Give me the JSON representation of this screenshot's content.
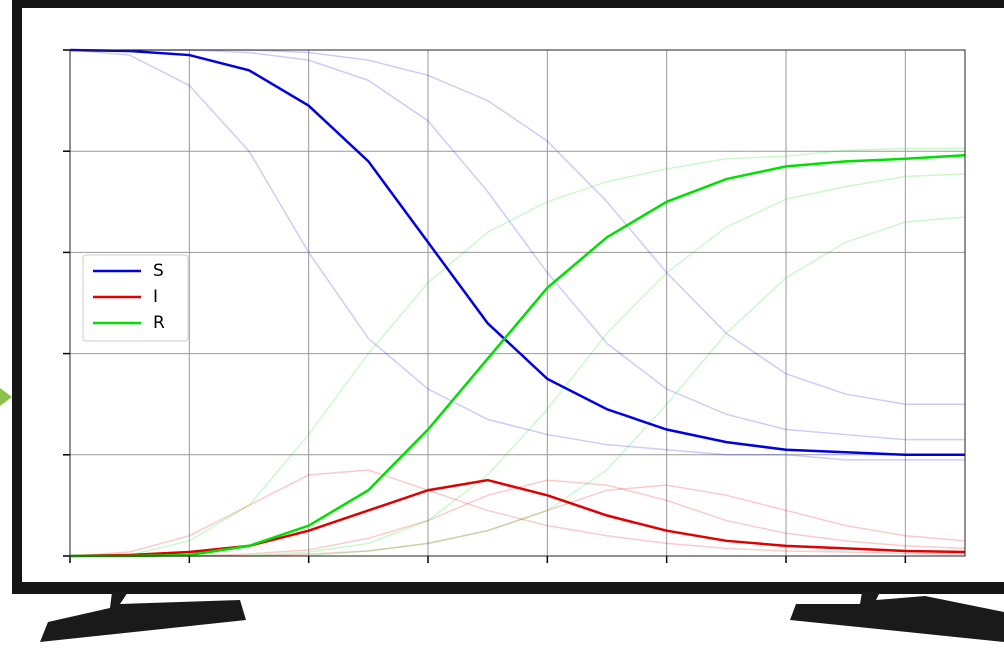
{
  "chart_data": {
    "type": "line",
    "x": [
      0,
      10,
      20,
      30,
      40,
      50,
      60,
      70,
      80,
      90,
      100,
      110,
      120,
      130,
      140,
      150
    ],
    "xlim": [
      0,
      150
    ],
    "xticks": [
      0,
      20,
      40,
      60,
      80,
      100,
      120,
      140
    ],
    "ylim": [
      0,
      1
    ],
    "yticks": [
      0,
      0.2,
      0.4,
      0.6,
      0.8,
      1.0
    ],
    "grid": true,
    "legend": "center left",
    "series": [
      {
        "name": "S",
        "color": "#0000e0",
        "values": [
          1.0,
          0.998,
          0.99,
          0.96,
          0.89,
          0.78,
          0.62,
          0.46,
          0.35,
          0.29,
          0.25,
          0.225,
          0.21,
          0.205,
          0.2,
          0.2
        ]
      },
      {
        "name": "I",
        "color": "#e00000",
        "values": [
          0,
          0.002,
          0.008,
          0.02,
          0.05,
          0.09,
          0.13,
          0.15,
          0.12,
          0.08,
          0.05,
          0.03,
          0.02,
          0.015,
          0.01,
          0.008
        ]
      },
      {
        "name": "R",
        "color": "#00e000",
        "values": [
          0,
          0,
          0.002,
          0.02,
          0.06,
          0.13,
          0.25,
          0.39,
          0.53,
          0.63,
          0.7,
          0.745,
          0.77,
          0.78,
          0.785,
          0.792
        ]
      }
    ],
    "ensemble": [
      {
        "color": "#0000e0",
        "values": [
          1,
          0.99,
          0.93,
          0.8,
          0.6,
          0.43,
          0.33,
          0.27,
          0.24,
          0.22,
          0.21,
          0.2,
          0.2,
          0.19,
          0.19,
          0.19
        ]
      },
      {
        "color": "#0000e0",
        "values": [
          1,
          1,
          1,
          0.995,
          0.98,
          0.94,
          0.86,
          0.72,
          0.56,
          0.42,
          0.33,
          0.28,
          0.25,
          0.24,
          0.23,
          0.23
        ]
      },
      {
        "color": "#0000e0",
        "values": [
          1,
          1,
          1,
          1,
          0.995,
          0.98,
          0.95,
          0.9,
          0.82,
          0.7,
          0.56,
          0.44,
          0.36,
          0.32,
          0.3,
          0.3
        ]
      },
      {
        "color": "#e00000",
        "values": [
          0,
          0.008,
          0.04,
          0.1,
          0.16,
          0.17,
          0.13,
          0.09,
          0.06,
          0.04,
          0.025,
          0.015,
          0.01,
          0.008,
          0.005,
          0.004
        ]
      },
      {
        "color": "#e00000",
        "values": [
          0,
          0,
          0,
          0.004,
          0.012,
          0.035,
          0.07,
          0.12,
          0.15,
          0.14,
          0.11,
          0.07,
          0.045,
          0.03,
          0.02,
          0.015
        ]
      },
      {
        "color": "#e00000",
        "values": [
          0,
          0,
          0,
          0,
          0.004,
          0.01,
          0.025,
          0.05,
          0.09,
          0.13,
          0.14,
          0.12,
          0.09,
          0.06,
          0.04,
          0.03
        ]
      },
      {
        "color": "#00e000",
        "values": [
          0,
          0.002,
          0.03,
          0.1,
          0.24,
          0.4,
          0.54,
          0.64,
          0.7,
          0.74,
          0.765,
          0.785,
          0.79,
          0.802,
          0.805,
          0.806
        ]
      },
      {
        "color": "#00e000",
        "values": [
          0,
          0,
          0,
          0.001,
          0.008,
          0.025,
          0.07,
          0.16,
          0.29,
          0.44,
          0.56,
          0.65,
          0.705,
          0.73,
          0.75,
          0.755
        ]
      },
      {
        "color": "#00e000",
        "values": [
          0,
          0,
          0,
          0,
          0.001,
          0.01,
          0.025,
          0.05,
          0.09,
          0.17,
          0.3,
          0.44,
          0.55,
          0.62,
          0.66,
          0.67
        ]
      }
    ]
  }
}
